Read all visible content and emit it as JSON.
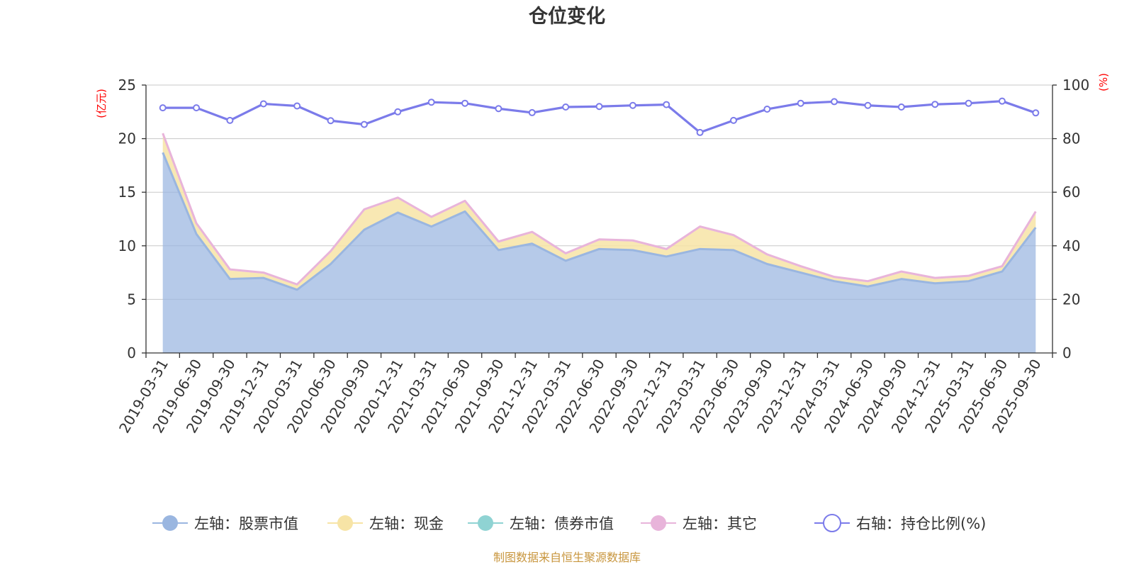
{
  "chart_data": {
    "type": "area",
    "title": "仓位变化",
    "left_unit": "(亿元)",
    "right_unit": "(%)",
    "left_ylim": [
      0,
      25
    ],
    "left_ticks": [
      0,
      5,
      10,
      15,
      20,
      25
    ],
    "right_ylim": [
      0,
      100
    ],
    "right_ticks": [
      0,
      20,
      40,
      60,
      80,
      100
    ],
    "categories": [
      "2019-03-31",
      "2019-06-30",
      "2019-09-30",
      "2019-12-31",
      "2020-03-31",
      "2020-06-30",
      "2020-09-30",
      "2020-12-31",
      "2021-03-31",
      "2021-06-30",
      "2021-09-30",
      "2021-12-31",
      "2022-03-31",
      "2022-06-30",
      "2022-09-30",
      "2022-12-31",
      "2023-03-31",
      "2023-06-30",
      "2023-09-30",
      "2023-12-31",
      "2024-03-31",
      "2024-06-30",
      "2024-09-30",
      "2024-12-31",
      "2025-03-31",
      "2025-06-30",
      "2025-09-30"
    ],
    "series": [
      {
        "name": "左轴：股票市值",
        "axis": "left",
        "type": "stacked-area",
        "color": "#9ab6e0",
        "values": [
          18.7,
          11.1,
          6.9,
          7.0,
          5.9,
          8.3,
          11.5,
          13.1,
          11.8,
          13.2,
          9.6,
          10.2,
          8.6,
          9.7,
          9.6,
          9.0,
          9.7,
          9.6,
          8.3,
          7.5,
          6.7,
          6.2,
          6.9,
          6.5,
          6.7,
          7.6,
          11.7
        ]
      },
      {
        "name": "左轴：现金",
        "axis": "left",
        "type": "stacked-area",
        "color": "#f7e4a6",
        "values": [
          1.6,
          0.9,
          0.8,
          0.4,
          0.4,
          1.1,
          1.8,
          1.3,
          0.8,
          0.9,
          0.7,
          1.0,
          0.6,
          0.8,
          0.8,
          0.6,
          2.0,
          1.3,
          0.8,
          0.5,
          0.3,
          0.4,
          0.6,
          0.4,
          0.4,
          0.4,
          1.3
        ]
      },
      {
        "name": "左轴：债券市值",
        "axis": "left",
        "type": "stacked-area",
        "color": "#8fd3d3",
        "values": [
          0,
          0,
          0,
          0,
          0,
          0,
          0,
          0,
          0,
          0,
          0,
          0,
          0,
          0,
          0,
          0,
          0,
          0,
          0,
          0,
          0,
          0,
          0,
          0,
          0,
          0,
          0
        ]
      },
      {
        "name": "左轴：其它",
        "axis": "left",
        "type": "stacked-area",
        "color": "#e8b4da",
        "values": [
          0.2,
          0.1,
          0.1,
          0.1,
          0.1,
          0.1,
          0.1,
          0.1,
          0.1,
          0.1,
          0.1,
          0.1,
          0.1,
          0.1,
          0.1,
          0.1,
          0.1,
          0.1,
          0.1,
          0.1,
          0.1,
          0.1,
          0.1,
          0.1,
          0.1,
          0.1,
          0.2
        ]
      },
      {
        "name": "右轴：持仓比例(%)",
        "axis": "right",
        "type": "line",
        "color": "#7b7bea",
        "values": [
          91.5,
          91.5,
          86.8,
          93.0,
          92.2,
          86.7,
          85.3,
          90.0,
          93.6,
          93.2,
          91.2,
          89.7,
          91.8,
          92.0,
          92.4,
          92.7,
          82.3,
          86.8,
          91.0,
          93.2,
          93.8,
          92.4,
          91.8,
          92.8,
          93.2,
          94.0,
          89.6
        ]
      }
    ],
    "legend_position": "bottom-center"
  },
  "legend": [
    {
      "label": "左轴：股票市值",
      "color": "#9ab6e0",
      "shape": "filled-circle"
    },
    {
      "label": "左轴：现金",
      "color": "#f7e4a6",
      "shape": "filled-circle"
    },
    {
      "label": "左轴：债券市值",
      "color": "#8fd3d3",
      "shape": "filled-circle"
    },
    {
      "label": "左轴：其它",
      "color": "#e8b4da",
      "shape": "filled-circle"
    },
    {
      "label": "右轴：持仓比例(%)",
      "color": "#7b7bea",
      "shape": "hollow-circle"
    }
  ],
  "source_text": "制图数据来自恒生聚源数据库"
}
